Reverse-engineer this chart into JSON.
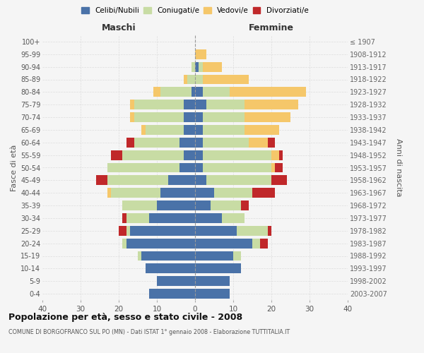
{
  "age_groups": [
    "0-4",
    "5-9",
    "10-14",
    "15-19",
    "20-24",
    "25-29",
    "30-34",
    "35-39",
    "40-44",
    "45-49",
    "50-54",
    "55-59",
    "60-64",
    "65-69",
    "70-74",
    "75-79",
    "80-84",
    "85-89",
    "90-94",
    "95-99",
    "100+"
  ],
  "birth_years": [
    "2003-2007",
    "1998-2002",
    "1993-1997",
    "1988-1992",
    "1983-1987",
    "1978-1982",
    "1973-1977",
    "1968-1972",
    "1963-1967",
    "1958-1962",
    "1953-1957",
    "1948-1952",
    "1943-1947",
    "1938-1942",
    "1933-1937",
    "1928-1932",
    "1923-1927",
    "1918-1922",
    "1913-1917",
    "1908-1912",
    "≤ 1907"
  ],
  "colors": {
    "celibi": "#4a72a8",
    "coniugati": "#c8dca4",
    "vedovi": "#f5c76a",
    "divorziati": "#c0282a"
  },
  "males": {
    "celibi": [
      12,
      10,
      13,
      14,
      18,
      17,
      12,
      10,
      9,
      7,
      4,
      3,
      4,
      3,
      3,
      3,
      1,
      0,
      0,
      0,
      0
    ],
    "coniugati": [
      0,
      0,
      0,
      1,
      1,
      1,
      6,
      9,
      13,
      16,
      19,
      16,
      12,
      10,
      13,
      13,
      8,
      2,
      1,
      0,
      0
    ],
    "vedovi": [
      0,
      0,
      0,
      0,
      0,
      0,
      0,
      0,
      1,
      0,
      0,
      0,
      0,
      1,
      1,
      1,
      2,
      1,
      0,
      0,
      0
    ],
    "divorziati": [
      0,
      0,
      0,
      0,
      0,
      2,
      1,
      0,
      0,
      3,
      0,
      3,
      2,
      0,
      0,
      0,
      0,
      0,
      0,
      0,
      0
    ]
  },
  "females": {
    "celibi": [
      9,
      9,
      12,
      10,
      15,
      11,
      7,
      4,
      5,
      3,
      2,
      2,
      2,
      2,
      2,
      3,
      2,
      0,
      1,
      0,
      0
    ],
    "coniugati": [
      0,
      0,
      0,
      2,
      2,
      8,
      6,
      8,
      10,
      17,
      18,
      18,
      12,
      11,
      11,
      10,
      7,
      2,
      1,
      0,
      0
    ],
    "vedovi": [
      0,
      0,
      0,
      0,
      0,
      0,
      0,
      0,
      0,
      0,
      1,
      2,
      5,
      9,
      12,
      14,
      20,
      12,
      5,
      3,
      0
    ],
    "divorziati": [
      0,
      0,
      0,
      0,
      2,
      1,
      0,
      2,
      6,
      4,
      2,
      1,
      2,
      0,
      0,
      0,
      0,
      0,
      0,
      0,
      0
    ]
  },
  "title": "Popolazione per età, sesso e stato civile - 2008",
  "subtitle": "COMUNE DI BORGOFRANCO SUL PO (MN) - Dati ISTAT 1° gennaio 2008 - Elaborazione TUTTITALIA.IT",
  "xlabel_left": "Maschi",
  "xlabel_right": "Femmine",
  "ylabel_left": "Fasce di età",
  "ylabel_right": "Anni di nascita",
  "xlim": 40,
  "legend_labels": [
    "Celibi/Nubili",
    "Coniugati/e",
    "Vedovi/e",
    "Divorziati/e"
  ],
  "bg_color": "#f5f5f5",
  "grid_color": "#cccccc"
}
